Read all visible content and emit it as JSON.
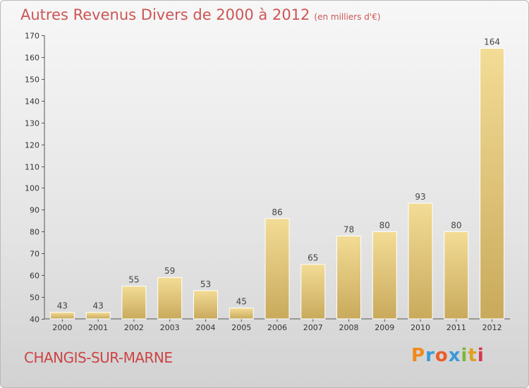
{
  "header": {
    "title": "Autres Revenus Divers de 2000 à 2012",
    "subtitle": "(en milliers d'€)"
  },
  "footer": {
    "commune": "CHANGIS-SUR-MARNE",
    "logo_parts": [
      "P",
      "r",
      "o",
      "x",
      "i",
      "t",
      "i"
    ]
  },
  "colors": {
    "bar_light": "#f3dc96",
    "bar_dark": "#c9aa5c",
    "title": "#cc5555",
    "axis": "#555555"
  },
  "chart_data": {
    "type": "bar",
    "title": "Autres Revenus Divers de 2000 à 2012",
    "subtitle": "(en milliers d'€)",
    "xlabel": "",
    "ylabel": "",
    "categories": [
      "2000",
      "2001",
      "2002",
      "2003",
      "2004",
      "2005",
      "2006",
      "2007",
      "2008",
      "2009",
      "2010",
      "2011",
      "2012"
    ],
    "values": [
      43,
      43,
      55,
      59,
      53,
      45,
      86,
      65,
      78,
      80,
      93,
      80,
      164
    ],
    "ylim": [
      40,
      170
    ],
    "yticks": [
      40,
      50,
      60,
      70,
      80,
      90,
      100,
      110,
      120,
      130,
      140,
      150,
      160,
      170
    ],
    "grid": false,
    "legend": "none"
  }
}
